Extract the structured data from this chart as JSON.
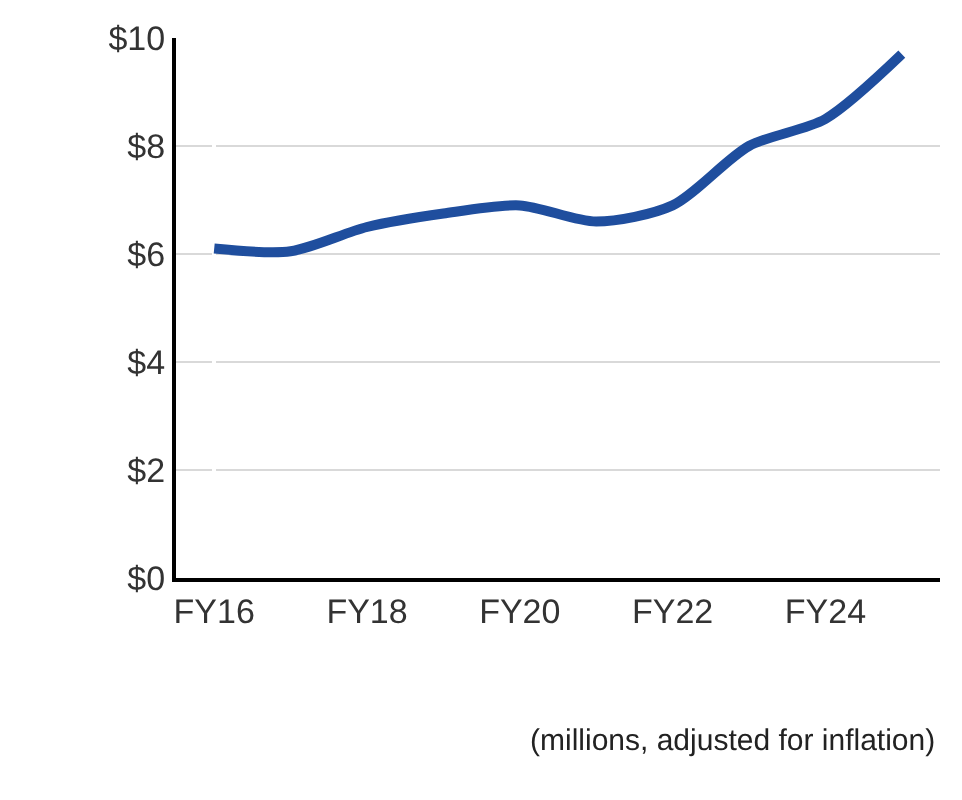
{
  "chart_data": {
    "type": "line",
    "categories": [
      "FY16",
      null,
      "FY18",
      null,
      "FY20",
      null,
      "FY22",
      null,
      "FY24",
      null
    ],
    "values": [
      6.1,
      6.05,
      6.5,
      6.75,
      6.9,
      6.6,
      6.9,
      8.0,
      8.5,
      9.7
    ],
    "color": "#1f4e9e",
    "ylim": [
      0,
      10
    ],
    "yticks": [
      {
        "value": 0,
        "label": "$0"
      },
      {
        "value": 2,
        "label": "$2"
      },
      {
        "value": 4,
        "label": "$4"
      },
      {
        "value": 6,
        "label": "$6"
      },
      {
        "value": 8,
        "label": "$8"
      },
      {
        "value": 10,
        "label": "$10"
      }
    ],
    "grid": "y",
    "marker": "none",
    "line_style": "solid",
    "annotations": [
      "(millions, adjusted for inflation)"
    ]
  }
}
